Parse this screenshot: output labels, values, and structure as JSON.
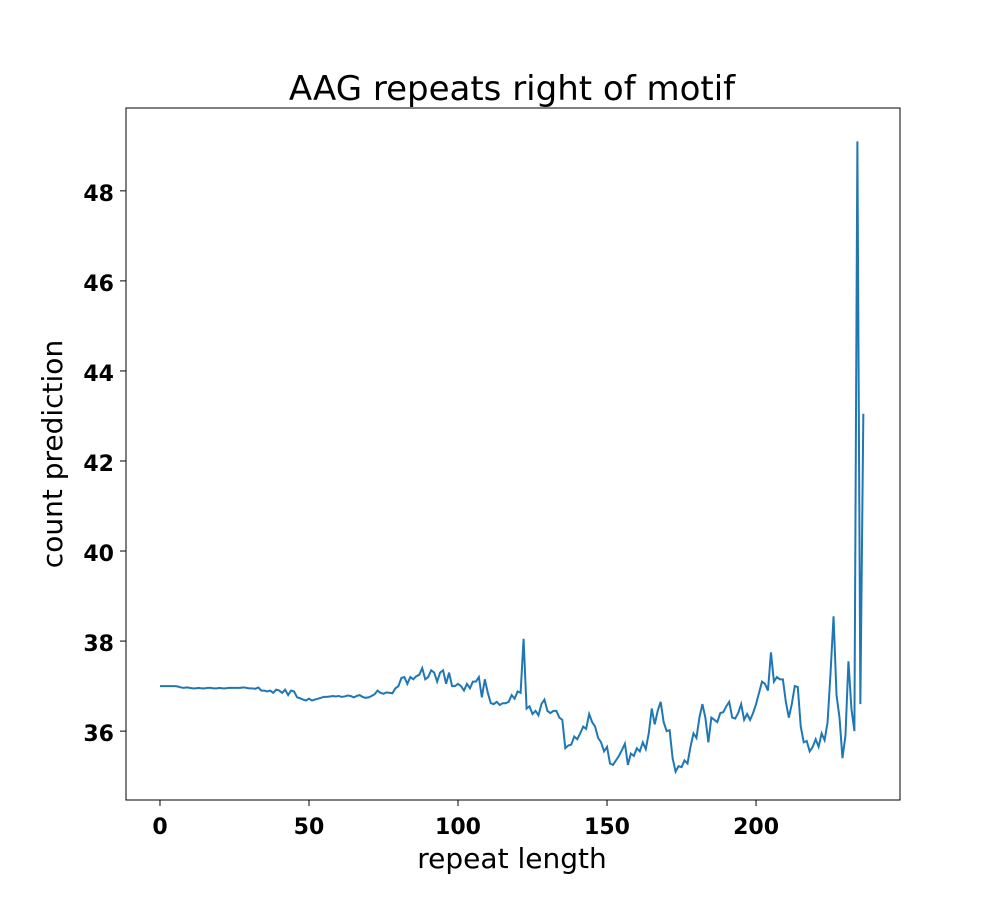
{
  "chart_data": {
    "type": "line",
    "title": "AAG repeats right of motif",
    "xlabel": "repeat length",
    "ylabel": "count prediction",
    "x": [
      0,
      1,
      2,
      3,
      4,
      5,
      6,
      7,
      8,
      9,
      10,
      11,
      12,
      13,
      14,
      15,
      16,
      17,
      18,
      19,
      20,
      21,
      22,
      23,
      24,
      25,
      26,
      27,
      28,
      29,
      30,
      31,
      32,
      33,
      34,
      35,
      36,
      37,
      38,
      39,
      40,
      41,
      42,
      43,
      44,
      45,
      46,
      47,
      48,
      49,
      50,
      51,
      52,
      53,
      54,
      55,
      56,
      57,
      58,
      59,
      60,
      61,
      62,
      63,
      64,
      65,
      66,
      67,
      68,
      69,
      70,
      71,
      72,
      73,
      74,
      75,
      76,
      77,
      78,
      79,
      80,
      81,
      82,
      83,
      84,
      85,
      86,
      87,
      88,
      89,
      90,
      91,
      92,
      93,
      94,
      95,
      96,
      97,
      98,
      99,
      100,
      101,
      102,
      103,
      104,
      105,
      106,
      107,
      108,
      109,
      110,
      111,
      112,
      113,
      114,
      115,
      116,
      117,
      118,
      119,
      120,
      121,
      122,
      123,
      124,
      125,
      126,
      127,
      128,
      129,
      130,
      131,
      132,
      133,
      134,
      135,
      136,
      137,
      138,
      139,
      140,
      141,
      142,
      143,
      144,
      145,
      146,
      147,
      148,
      149,
      150,
      151,
      152,
      153,
      154,
      155,
      156,
      157,
      158,
      159,
      160,
      161,
      162,
      163,
      164,
      165,
      166,
      167,
      168,
      169,
      170,
      171,
      172,
      173,
      174,
      175,
      176,
      177,
      178,
      179,
      180,
      181,
      182,
      183,
      184,
      185,
      186,
      187,
      188,
      189,
      190,
      191,
      192,
      193,
      194,
      195,
      196,
      197,
      198,
      199,
      200,
      201,
      202,
      203,
      204,
      205,
      206,
      207,
      208,
      209,
      210,
      211,
      212,
      213,
      214,
      215,
      216,
      217,
      218,
      219,
      220,
      221,
      222,
      223,
      224,
      225,
      226,
      227,
      228,
      229,
      230,
      231,
      232,
      233,
      234,
      235,
      236
    ],
    "series": [
      {
        "color": "#1f77b4",
        "values": [
          37.0,
          37.0,
          37.0,
          37.0,
          37.0,
          37.0,
          36.99,
          36.97,
          36.96,
          36.97,
          36.96,
          36.95,
          36.95,
          36.96,
          36.95,
          36.95,
          36.96,
          36.96,
          36.95,
          36.95,
          36.96,
          36.95,
          36.95,
          36.96,
          36.96,
          36.96,
          36.96,
          36.96,
          36.97,
          36.96,
          36.95,
          36.95,
          36.94,
          36.97,
          36.9,
          36.9,
          36.88,
          36.9,
          36.85,
          36.92,
          36.9,
          36.85,
          36.92,
          36.8,
          36.9,
          36.88,
          36.75,
          36.73,
          36.7,
          36.68,
          36.72,
          36.68,
          36.7,
          36.72,
          36.74,
          36.76,
          36.76,
          36.77,
          36.78,
          36.77,
          36.78,
          36.76,
          36.77,
          36.79,
          36.78,
          36.75,
          36.78,
          36.8,
          36.76,
          36.74,
          36.75,
          36.78,
          36.82,
          36.9,
          36.85,
          36.83,
          36.86,
          36.85,
          36.84,
          36.95,
          37.0,
          37.18,
          37.2,
          37.05,
          37.2,
          37.15,
          37.22,
          37.25,
          37.4,
          37.15,
          37.2,
          37.35,
          37.3,
          37.1,
          37.3,
          37.35,
          37.05,
          37.3,
          37.0,
          37.0,
          37.05,
          37.0,
          36.9,
          37.05,
          36.95,
          37.1,
          37.1,
          37.2,
          36.75,
          37.15,
          36.85,
          36.62,
          36.6,
          36.65,
          36.58,
          36.62,
          36.62,
          36.65,
          36.8,
          36.72,
          36.88,
          36.85,
          38.05,
          36.5,
          36.55,
          36.38,
          36.45,
          36.35,
          36.6,
          36.7,
          36.45,
          36.4,
          36.45,
          36.45,
          36.3,
          36.25,
          35.62,
          35.68,
          35.7,
          35.88,
          35.82,
          35.95,
          36.1,
          36.05,
          36.38,
          36.2,
          36.1,
          35.85,
          35.75,
          35.55,
          35.65,
          35.28,
          35.25,
          35.35,
          35.45,
          35.58,
          35.72,
          35.25,
          35.5,
          35.45,
          35.62,
          35.55,
          35.75,
          35.6,
          35.95,
          36.5,
          36.15,
          36.45,
          36.65,
          36.2,
          36.0,
          36.02,
          35.4,
          35.1,
          35.22,
          35.2,
          35.35,
          35.28,
          35.65,
          35.95,
          35.85,
          36.3,
          36.6,
          36.3,
          35.75,
          36.3,
          36.25,
          36.2,
          36.4,
          36.42,
          36.55,
          36.65,
          36.3,
          36.28,
          36.4,
          36.6,
          36.25,
          36.38,
          36.25,
          36.4,
          36.6,
          36.85,
          37.1,
          37.05,
          36.9,
          37.75,
          37.1,
          37.2,
          37.15,
          37.15,
          36.65,
          36.3,
          36.6,
          37.0,
          36.98,
          36.1,
          35.75,
          35.78,
          35.55,
          35.65,
          35.82,
          35.65,
          35.95,
          35.8,
          36.2,
          37.3,
          38.55,
          36.8,
          36.3,
          35.4,
          35.9,
          37.55,
          36.5,
          36.0,
          49.1,
          36.6,
          43.05
        ]
      }
    ],
    "xlim": [
      -11.4,
      248.3
    ],
    "ylim": [
      34.47,
      49.84
    ],
    "xticks": [
      0,
      50,
      100,
      150,
      200
    ],
    "yticks": [
      36,
      38,
      40,
      42,
      44,
      46,
      48
    ]
  }
}
